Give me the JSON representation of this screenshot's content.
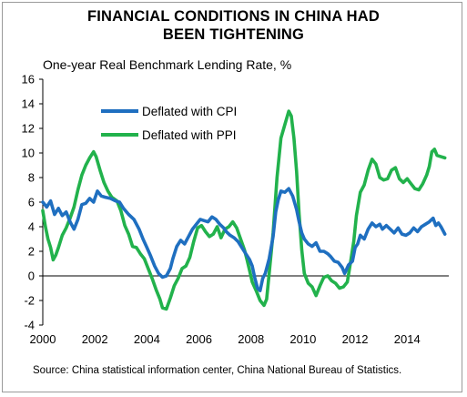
{
  "chart_data": {
    "type": "line",
    "title": "FINANCIAL CONDITIONS IN CHINA HAD BEEN TIGHTENING",
    "title_lines": [
      "FINANCIAL CONDITIONS IN CHINA HAD",
      "BEEN TIGHTENING"
    ],
    "subtitle": "One-year Real Benchmark Lending Rate, %",
    "source": "Source: China statistical information center, China National Bureau of Statistics.",
    "xlim": [
      2000,
      2015.6
    ],
    "ylim": [
      -4,
      16
    ],
    "x_ticks": [
      2000,
      2002,
      2004,
      2006,
      2008,
      2010,
      2012,
      2014
    ],
    "y_ticks": [
      -4,
      -2,
      0,
      2,
      4,
      6,
      8,
      10,
      12,
      14,
      16
    ],
    "grid": false,
    "legend_position": "upper-left",
    "series": [
      {
        "name": "Deflated with CPI",
        "color": "#1f6fc0",
        "points": [
          [
            2000.0,
            6.0
          ],
          [
            2000.15,
            5.6
          ],
          [
            2000.3,
            6.1
          ],
          [
            2000.45,
            5.0
          ],
          [
            2000.6,
            5.5
          ],
          [
            2000.75,
            4.9
          ],
          [
            2000.9,
            5.2
          ],
          [
            2001.05,
            4.4
          ],
          [
            2001.2,
            3.8
          ],
          [
            2001.35,
            4.6
          ],
          [
            2001.5,
            5.8
          ],
          [
            2001.65,
            5.9
          ],
          [
            2001.8,
            6.3
          ],
          [
            2001.95,
            6.0
          ],
          [
            2002.1,
            6.9
          ],
          [
            2002.25,
            6.5
          ],
          [
            2002.4,
            6.4
          ],
          [
            2002.6,
            6.3
          ],
          [
            2002.8,
            6.1
          ],
          [
            2002.95,
            6.0
          ],
          [
            2003.1,
            5.5
          ],
          [
            2003.3,
            5.0
          ],
          [
            2003.5,
            4.6
          ],
          [
            2003.7,
            3.8
          ],
          [
            2003.85,
            3.0
          ],
          [
            2004.0,
            2.3
          ],
          [
            2004.15,
            1.6
          ],
          [
            2004.3,
            0.8
          ],
          [
            2004.45,
            0.2
          ],
          [
            2004.6,
            -0.1
          ],
          [
            2004.75,
            0.0
          ],
          [
            2004.9,
            0.6
          ],
          [
            2005.0,
            1.4
          ],
          [
            2005.15,
            2.4
          ],
          [
            2005.3,
            2.9
          ],
          [
            2005.45,
            2.6
          ],
          [
            2005.6,
            3.2
          ],
          [
            2005.75,
            3.8
          ],
          [
            2005.9,
            4.2
          ],
          [
            2006.05,
            4.6
          ],
          [
            2006.2,
            4.5
          ],
          [
            2006.35,
            4.4
          ],
          [
            2006.5,
            4.8
          ],
          [
            2006.65,
            4.6
          ],
          [
            2006.8,
            4.2
          ],
          [
            2006.95,
            3.9
          ],
          [
            2007.05,
            3.6
          ],
          [
            2007.2,
            3.3
          ],
          [
            2007.35,
            3.1
          ],
          [
            2007.5,
            2.8
          ],
          [
            2007.65,
            2.3
          ],
          [
            2007.8,
            1.8
          ],
          [
            2007.95,
            1.3
          ],
          [
            2008.05,
            0.8
          ],
          [
            2008.15,
            -0.2
          ],
          [
            2008.25,
            -1.0
          ],
          [
            2008.35,
            -1.2
          ],
          [
            2008.45,
            -0.2
          ],
          [
            2008.55,
            0.2
          ],
          [
            2008.7,
            1.4
          ],
          [
            2008.85,
            3.2
          ],
          [
            2008.95,
            5.2
          ],
          [
            2009.05,
            6.2
          ],
          [
            2009.15,
            6.9
          ],
          [
            2009.3,
            6.8
          ],
          [
            2009.45,
            7.1
          ],
          [
            2009.6,
            6.5
          ],
          [
            2009.75,
            5.4
          ],
          [
            2009.85,
            4.4
          ],
          [
            2009.95,
            3.5
          ],
          [
            2010.05,
            3.0
          ],
          [
            2010.2,
            2.6
          ],
          [
            2010.35,
            2.4
          ],
          [
            2010.5,
            2.7
          ],
          [
            2010.65,
            2.0
          ],
          [
            2010.8,
            2.0
          ],
          [
            2010.95,
            1.8
          ],
          [
            2011.05,
            1.6
          ],
          [
            2011.2,
            1.2
          ],
          [
            2011.35,
            1.1
          ],
          [
            2011.5,
            0.7
          ],
          [
            2011.6,
            0.2
          ],
          [
            2011.75,
            0.9
          ],
          [
            2011.9,
            1.2
          ],
          [
            2012.0,
            2.3
          ],
          [
            2012.1,
            2.6
          ],
          [
            2012.2,
            3.3
          ],
          [
            2012.35,
            3.0
          ],
          [
            2012.5,
            3.8
          ],
          [
            2012.65,
            4.3
          ],
          [
            2012.8,
            4.0
          ],
          [
            2012.95,
            4.2
          ],
          [
            2013.05,
            3.8
          ],
          [
            2013.2,
            4.1
          ],
          [
            2013.35,
            3.8
          ],
          [
            2013.5,
            3.5
          ],
          [
            2013.65,
            3.9
          ],
          [
            2013.8,
            3.4
          ],
          [
            2013.95,
            3.3
          ],
          [
            2014.1,
            3.5
          ],
          [
            2014.25,
            3.9
          ],
          [
            2014.4,
            3.6
          ],
          [
            2014.55,
            4.0
          ],
          [
            2014.7,
            4.2
          ],
          [
            2014.85,
            4.4
          ],
          [
            2015.0,
            4.7
          ],
          [
            2015.1,
            4.1
          ],
          [
            2015.2,
            4.3
          ],
          [
            2015.3,
            4.0
          ],
          [
            2015.45,
            3.4
          ]
        ]
      },
      {
        "name": "Deflated with PPI",
        "color": "#22b24c",
        "points": [
          [
            2000.0,
            5.3
          ],
          [
            2000.1,
            4.0
          ],
          [
            2000.2,
            3.0
          ],
          [
            2000.3,
            2.3
          ],
          [
            2000.4,
            1.3
          ],
          [
            2000.5,
            1.7
          ],
          [
            2000.6,
            2.3
          ],
          [
            2000.75,
            3.3
          ],
          [
            2000.9,
            3.9
          ],
          [
            2001.05,
            4.7
          ],
          [
            2001.2,
            5.6
          ],
          [
            2001.35,
            7.0
          ],
          [
            2001.5,
            8.2
          ],
          [
            2001.65,
            9.0
          ],
          [
            2001.8,
            9.6
          ],
          [
            2001.95,
            10.1
          ],
          [
            2002.05,
            9.7
          ],
          [
            2002.2,
            8.6
          ],
          [
            2002.35,
            7.6
          ],
          [
            2002.5,
            6.9
          ],
          [
            2002.65,
            6.4
          ],
          [
            2002.85,
            6.1
          ],
          [
            2003.0,
            5.3
          ],
          [
            2003.15,
            4.1
          ],
          [
            2003.3,
            3.4
          ],
          [
            2003.45,
            2.4
          ],
          [
            2003.6,
            2.3
          ],
          [
            2003.75,
            1.8
          ],
          [
            2003.9,
            1.4
          ],
          [
            2004.05,
            0.6
          ],
          [
            2004.2,
            -0.2
          ],
          [
            2004.35,
            -1.1
          ],
          [
            2004.5,
            -1.9
          ],
          [
            2004.6,
            -2.6
          ],
          [
            2004.75,
            -2.7
          ],
          [
            2004.9,
            -1.8
          ],
          [
            2005.05,
            -0.8
          ],
          [
            2005.2,
            -0.2
          ],
          [
            2005.35,
            0.6
          ],
          [
            2005.5,
            0.8
          ],
          [
            2005.65,
            1.5
          ],
          [
            2005.8,
            2.8
          ],
          [
            2005.95,
            3.9
          ],
          [
            2006.1,
            4.1
          ],
          [
            2006.25,
            3.6
          ],
          [
            2006.4,
            3.2
          ],
          [
            2006.55,
            3.4
          ],
          [
            2006.7,
            4.0
          ],
          [
            2006.85,
            3.1
          ],
          [
            2007.0,
            3.8
          ],
          [
            2007.15,
            4.0
          ],
          [
            2007.3,
            4.4
          ],
          [
            2007.45,
            3.9
          ],
          [
            2007.6,
            3.0
          ],
          [
            2007.75,
            2.1
          ],
          [
            2007.85,
            1.3
          ],
          [
            2007.95,
            0.4
          ],
          [
            2008.05,
            -0.5
          ],
          [
            2008.2,
            -1.2
          ],
          [
            2008.35,
            -2.0
          ],
          [
            2008.5,
            -2.4
          ],
          [
            2008.6,
            -1.9
          ],
          [
            2008.7,
            0.2
          ],
          [
            2008.85,
            3.5
          ],
          [
            2009.0,
            8.0
          ],
          [
            2009.15,
            11.2
          ],
          [
            2009.3,
            12.3
          ],
          [
            2009.45,
            13.4
          ],
          [
            2009.55,
            13.0
          ],
          [
            2009.65,
            11.2
          ],
          [
            2009.75,
            8.5
          ],
          [
            2009.85,
            5.0
          ],
          [
            2009.95,
            2.1
          ],
          [
            2010.05,
            0.2
          ],
          [
            2010.2,
            -0.6
          ],
          [
            2010.35,
            -0.9
          ],
          [
            2010.5,
            -1.6
          ],
          [
            2010.65,
            -0.8
          ],
          [
            2010.8,
            -0.1
          ],
          [
            2010.95,
            0.0
          ],
          [
            2011.1,
            -0.4
          ],
          [
            2011.25,
            -0.6
          ],
          [
            2011.4,
            -1.0
          ],
          [
            2011.55,
            -0.9
          ],
          [
            2011.7,
            -0.5
          ],
          [
            2011.8,
            0.8
          ],
          [
            2011.95,
            2.8
          ],
          [
            2012.05,
            4.9
          ],
          [
            2012.2,
            6.8
          ],
          [
            2012.35,
            7.4
          ],
          [
            2012.5,
            8.6
          ],
          [
            2012.65,
            9.5
          ],
          [
            2012.8,
            9.1
          ],
          [
            2012.95,
            8.0
          ],
          [
            2013.1,
            7.8
          ],
          [
            2013.25,
            7.9
          ],
          [
            2013.4,
            8.6
          ],
          [
            2013.55,
            8.8
          ],
          [
            2013.7,
            7.9
          ],
          [
            2013.85,
            7.6
          ],
          [
            2014.0,
            7.9
          ],
          [
            2014.15,
            7.5
          ],
          [
            2014.3,
            7.1
          ],
          [
            2014.45,
            7.0
          ],
          [
            2014.6,
            7.5
          ],
          [
            2014.75,
            8.2
          ],
          [
            2014.85,
            8.9
          ],
          [
            2014.95,
            10.1
          ],
          [
            2015.05,
            10.3
          ],
          [
            2015.15,
            9.8
          ],
          [
            2015.3,
            9.7
          ],
          [
            2015.45,
            9.6
          ]
        ]
      }
    ]
  }
}
